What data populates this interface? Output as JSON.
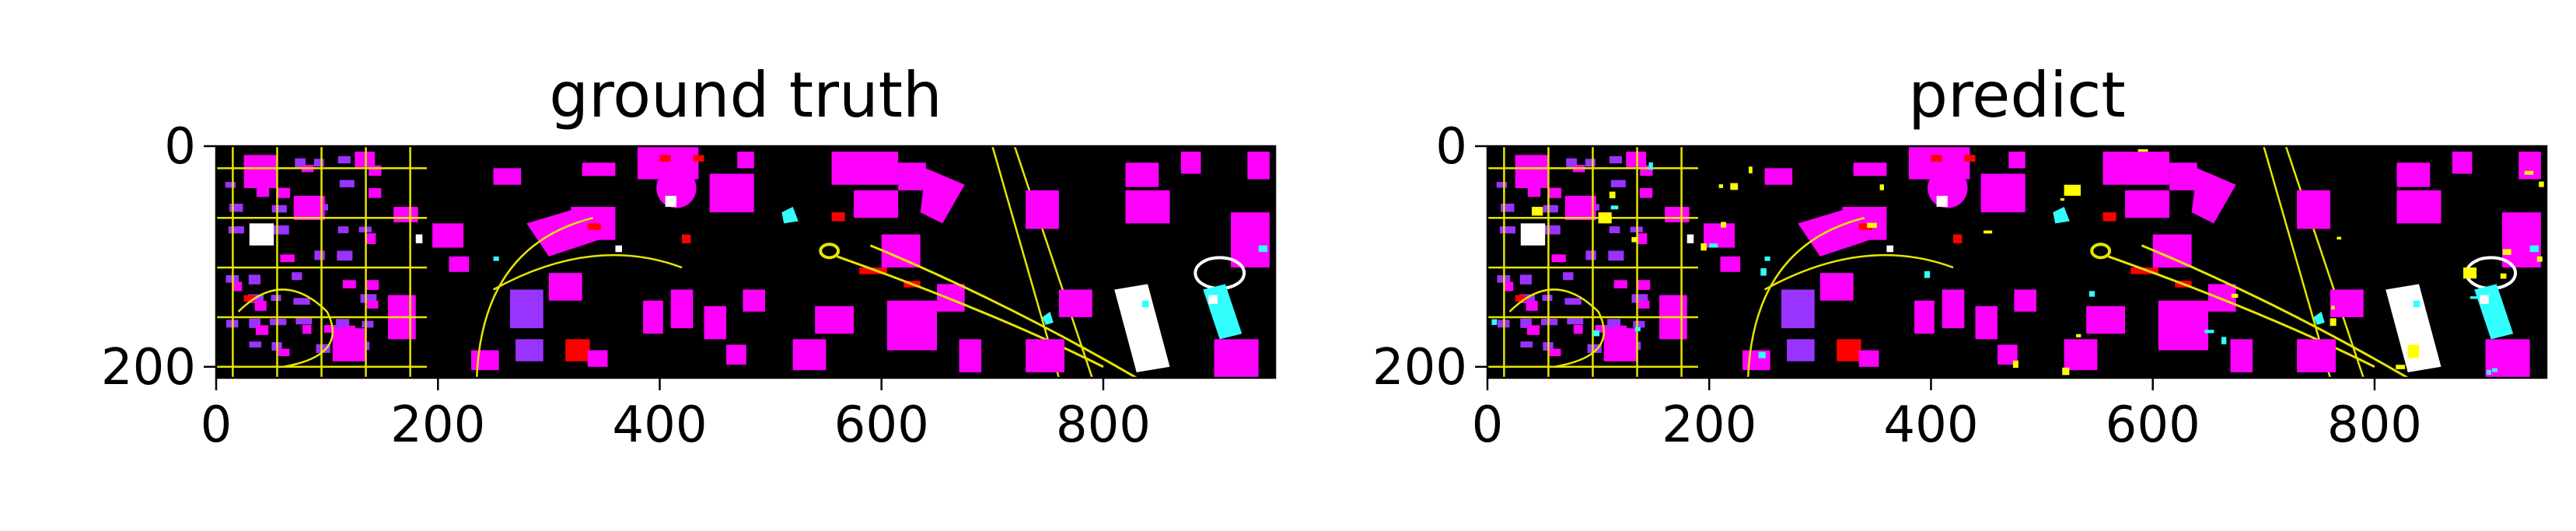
{
  "chart_data": [
    {
      "type": "heatmap",
      "title": "ground truth",
      "xlim": [
        0,
        955
      ],
      "ylim": [
        210,
        0
      ],
      "xticks": [
        {
          "value": 0,
          "label": "0"
        },
        {
          "value": 200,
          "label": "200"
        },
        {
          "value": 400,
          "label": "400"
        },
        {
          "value": 600,
          "label": "600"
        },
        {
          "value": 800,
          "label": "800"
        }
      ],
      "yticks": [
        {
          "value": 0,
          "label": "0"
        },
        {
          "value": 200,
          "label": "200"
        }
      ],
      "grid": false
    },
    {
      "type": "heatmap",
      "title": "predict",
      "xlim": [
        0,
        955
      ],
      "ylim": [
        210,
        0
      ],
      "xticks": [
        {
          "value": 0,
          "label": "0"
        },
        {
          "value": 200,
          "label": "200"
        },
        {
          "value": 400,
          "label": "400"
        },
        {
          "value": 600,
          "label": "600"
        },
        {
          "value": 800,
          "label": "800"
        }
      ],
      "yticks": [
        {
          "value": 0,
          "label": "0"
        },
        {
          "value": 200,
          "label": "200"
        }
      ],
      "grid": false
    }
  ],
  "colors": {
    "background": "#000000",
    "building": "#ff00ff",
    "road": "#e6e600",
    "tree": "#9933ff",
    "car": "#ff0000",
    "water": "#33ffff",
    "bare": "#ffffff",
    "yellow_patch": "#ffff00"
  }
}
